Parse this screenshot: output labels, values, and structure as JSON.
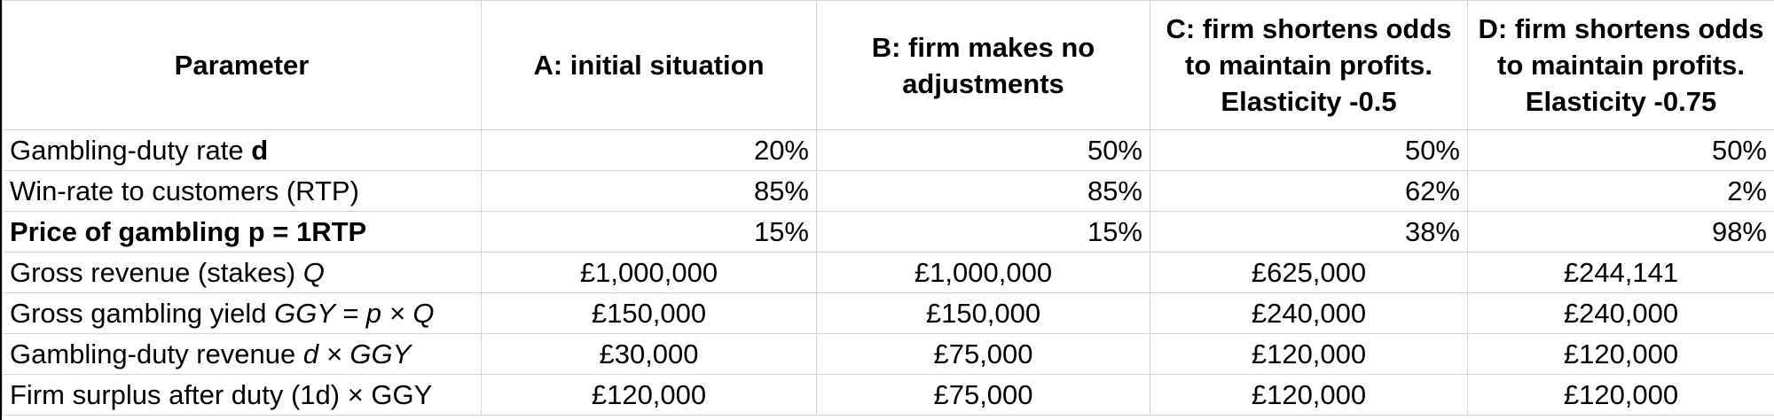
{
  "headers": [
    "Parameter",
    "A: initial situation",
    "B: firm makes no adjustments",
    "C: firm shortens odds to maintain profits. Elasticity -0.5",
    "D: firm shortens odds to maintain profits. Elasticity -0.75"
  ],
  "rows": [
    {
      "label_plain": "Gambling-duty rate ",
      "label_bold": "d",
      "values": [
        "20%",
        "50%",
        "50%",
        "50%"
      ]
    },
    {
      "label": "Win-rate to customers (RTP)",
      "values": [
        "85%",
        "85%",
        "62%",
        "2%"
      ]
    },
    {
      "label": "Price of gambling p = 1RTP",
      "values": [
        "15%",
        "15%",
        "38%",
        "98%"
      ]
    },
    {
      "label_plain": "Gross revenue (stakes) ",
      "label_italic": "Q",
      "values": [
        "£1,000,000",
        "£1,000,000",
        "£625,000",
        "£244,141"
      ]
    },
    {
      "label_plain": "Gross gambling yield ",
      "label_italic": "GGY = p × Q",
      "values": [
        "£150,000",
        "£150,000",
        "£240,000",
        "£240,000"
      ]
    },
    {
      "label_plain": "Gambling-duty revenue ",
      "label_italic": "d × GGY",
      "values": [
        "£30,000",
        "£75,000",
        "£120,000",
        "£120,000"
      ]
    },
    {
      "label": "Firm surplus after duty (1d) × GGY",
      "values": [
        "£120,000",
        "£75,000",
        "£120,000",
        "£120,000"
      ]
    }
  ]
}
